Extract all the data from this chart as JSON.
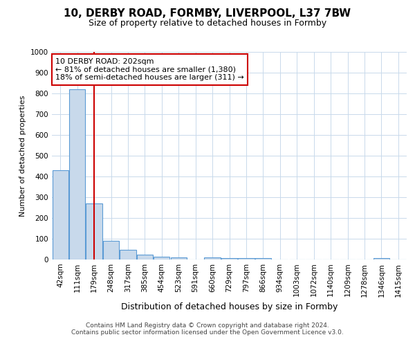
{
  "title": "10, DERBY ROAD, FORMBY, LIVERPOOL, L37 7BW",
  "subtitle": "Size of property relative to detached houses in Formby",
  "xlabel": "Distribution of detached houses by size in Formby",
  "ylabel": "Number of detached properties",
  "bar_color": "#c8d9eb",
  "bar_edge_color": "#5b9bd5",
  "categories": [
    "42sqm",
    "111sqm",
    "179sqm",
    "248sqm",
    "317sqm",
    "385sqm",
    "454sqm",
    "523sqm",
    "591sqm",
    "660sqm",
    "729sqm",
    "797sqm",
    "866sqm",
    "934sqm",
    "1003sqm",
    "1072sqm",
    "1140sqm",
    "1209sqm",
    "1278sqm",
    "1346sqm",
    "1415sqm"
  ],
  "values": [
    430,
    820,
    270,
    90,
    47,
    22,
    15,
    10,
    0,
    10,
    8,
    8,
    8,
    0,
    0,
    0,
    0,
    0,
    0,
    8,
    0
  ],
  "ylim": [
    0,
    1000
  ],
  "yticks": [
    0,
    100,
    200,
    300,
    400,
    500,
    600,
    700,
    800,
    900,
    1000
  ],
  "property_line_x": 2.0,
  "property_line_color": "#cc0000",
  "annotation_text": "10 DERBY ROAD: 202sqm\n← 81% of detached houses are smaller (1,380)\n18% of semi-detached houses are larger (311) →",
  "annotation_box_color": "#ffffff",
  "annotation_box_edge_color": "#cc0000",
  "footer_text": "Contains HM Land Registry data © Crown copyright and database right 2024.\nContains public sector information licensed under the Open Government Licence v3.0.",
  "background_color": "#ffffff",
  "grid_color": "#c8d9eb",
  "title_fontsize": 11,
  "subtitle_fontsize": 9,
  "xlabel_fontsize": 9,
  "ylabel_fontsize": 8,
  "tick_fontsize": 7.5,
  "footer_fontsize": 6.5,
  "annotation_fontsize": 8
}
